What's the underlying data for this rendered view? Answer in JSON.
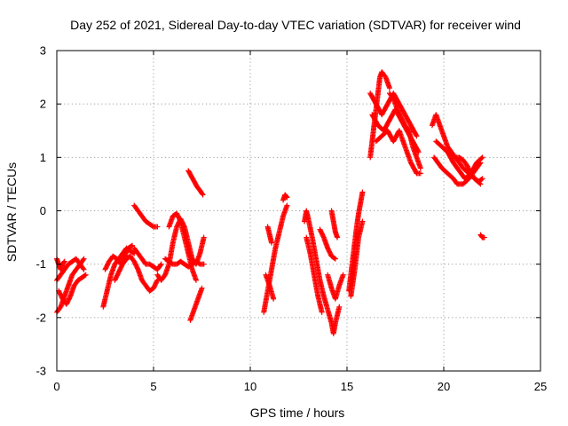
{
  "chart_data": {
    "type": "scatter",
    "title": "Day 252 of 2021, Sidereal Day-to-day VTEC variation (SDTVAR) for receiver wind",
    "xlabel": "GPS time / hours",
    "ylabel": "SDTVAR / TECUs",
    "xlim": [
      0,
      25
    ],
    "ylim": [
      -3,
      3
    ],
    "xticks": [
      "0",
      "5",
      "10",
      "15",
      "20",
      "25"
    ],
    "yticks": [
      "-3",
      "-2",
      "-1",
      "0",
      "1",
      "2",
      "3"
    ],
    "grid": true,
    "marker": "+",
    "marker_color": "#ff0000",
    "series": [
      {
        "name": "SDTVAR",
        "segments": [
          [
            [
              0.0,
              -1.9
            ],
            [
              0.2,
              -1.8
            ],
            [
              0.4,
              -1.6
            ],
            [
              0.6,
              -1.4
            ],
            [
              0.8,
              -1.2
            ],
            [
              1.0,
              -1.1
            ],
            [
              1.2,
              -1.0
            ],
            [
              1.4,
              -0.9
            ]
          ],
          [
            [
              0.0,
              -1.3
            ],
            [
              0.2,
              -1.2
            ],
            [
              0.4,
              -1.1
            ],
            [
              0.6,
              -1.0
            ],
            [
              0.8,
              -0.95
            ],
            [
              1.0,
              -0.9
            ],
            [
              1.2,
              -1.0
            ],
            [
              1.4,
              -1.1
            ]
          ],
          [
            [
              0.1,
              -1.5
            ],
            [
              0.3,
              -1.65
            ],
            [
              0.5,
              -1.75
            ],
            [
              0.7,
              -1.6
            ],
            [
              0.9,
              -1.4
            ],
            [
              1.1,
              -1.3
            ],
            [
              1.3,
              -1.25
            ],
            [
              1.5,
              -1.2
            ]
          ],
          [
            [
              0.0,
              -0.9
            ],
            [
              0.1,
              -1.0
            ],
            [
              0.2,
              -1.1
            ],
            [
              0.3,
              -1.0
            ],
            [
              0.4,
              -0.95
            ]
          ],
          [
            [
              2.4,
              -1.8
            ],
            [
              2.6,
              -1.5
            ],
            [
              2.8,
              -1.2
            ],
            [
              3.0,
              -1.0
            ],
            [
              3.2,
              -0.9
            ],
            [
              3.4,
              -0.8
            ],
            [
              3.6,
              -0.7
            ],
            [
              3.8,
              -0.75
            ],
            [
              4.0,
              -0.8
            ]
          ],
          [
            [
              2.5,
              -1.1
            ],
            [
              2.7,
              -0.95
            ],
            [
              2.9,
              -0.85
            ],
            [
              3.1,
              -0.9
            ],
            [
              3.3,
              -1.0
            ],
            [
              3.5,
              -0.85
            ],
            [
              3.7,
              -0.7
            ],
            [
              3.9,
              -0.65
            ]
          ],
          [
            [
              3.0,
              -1.3
            ],
            [
              3.2,
              -1.15
            ],
            [
              3.4,
              -1.0
            ],
            [
              3.6,
              -0.9
            ],
            [
              3.8,
              -0.85
            ],
            [
              4.0,
              -0.95
            ],
            [
              4.2,
              -1.1
            ],
            [
              4.4,
              -1.3
            ],
            [
              4.6,
              -1.4
            ],
            [
              4.8,
              -1.5
            ],
            [
              5.0,
              -1.45
            ],
            [
              5.2,
              -1.3
            ]
          ],
          [
            [
              4.0,
              -0.7
            ],
            [
              4.2,
              -0.8
            ],
            [
              4.4,
              -0.9
            ],
            [
              4.6,
              -1.0
            ],
            [
              4.8,
              -1.0
            ],
            [
              5.0,
              -1.05
            ],
            [
              5.2,
              -1.1
            ],
            [
              5.4,
              -1.0
            ]
          ],
          [
            [
              4.0,
              0.1
            ],
            [
              4.2,
              0.0
            ],
            [
              4.4,
              -0.1
            ],
            [
              4.6,
              -0.2
            ],
            [
              4.8,
              -0.25
            ],
            [
              5.0,
              -0.3
            ],
            [
              5.2,
              -0.3
            ]
          ],
          [
            [
              5.2,
              -1.2
            ],
            [
              5.4,
              -1.3
            ],
            [
              5.6,
              -1.2
            ],
            [
              5.8,
              -1.0
            ],
            [
              6.0,
              -0.6
            ],
            [
              6.2,
              -0.3
            ],
            [
              6.4,
              -0.15
            ],
            [
              6.6,
              -0.3
            ],
            [
              6.8,
              -0.6
            ],
            [
              7.0,
              -0.9
            ],
            [
              7.2,
              -1.0
            ],
            [
              7.4,
              -0.8
            ],
            [
              7.6,
              -0.5
            ]
          ],
          [
            [
              5.8,
              -0.3
            ],
            [
              6.0,
              -0.1
            ],
            [
              6.2,
              -0.05
            ],
            [
              6.4,
              -0.2
            ],
            [
              6.6,
              -0.5
            ],
            [
              6.8,
              -0.8
            ],
            [
              7.0,
              -1.1
            ],
            [
              7.2,
              -1.3
            ]
          ],
          [
            [
              5.6,
              -0.9
            ],
            [
              5.8,
              -0.95
            ],
            [
              6.0,
              -1.0
            ],
            [
              6.2,
              -1.0
            ],
            [
              6.4,
              -0.95
            ],
            [
              6.6,
              -1.0
            ],
            [
              6.8,
              -1.05
            ],
            [
              7.0,
              -1.0
            ],
            [
              7.2,
              -0.95
            ],
            [
              7.4,
              -1.0
            ],
            [
              7.6,
              -1.0
            ]
          ],
          [
            [
              6.9,
              -2.05
            ],
            [
              7.1,
              -1.85
            ],
            [
              7.3,
              -1.65
            ],
            [
              7.5,
              -1.45
            ]
          ],
          [
            [
              6.8,
              0.75
            ],
            [
              6.95,
              0.65
            ],
            [
              7.1,
              0.55
            ],
            [
              7.25,
              0.45
            ],
            [
              7.4,
              0.38
            ],
            [
              7.55,
              0.3
            ]
          ],
          [
            [
              10.7,
              -1.9
            ],
            [
              10.9,
              -1.5
            ],
            [
              11.1,
              -1.1
            ],
            [
              11.3,
              -0.7
            ],
            [
              11.5,
              -0.4
            ],
            [
              11.7,
              -0.1
            ],
            [
              11.9,
              0.1
            ]
          ],
          [
            [
              10.8,
              -1.2
            ],
            [
              11.0,
              -1.4
            ],
            [
              11.2,
              -1.65
            ]
          ],
          [
            [
              10.9,
              -0.3
            ],
            [
              11.0,
              -0.45
            ],
            [
              11.1,
              -0.6
            ]
          ],
          [
            [
              11.7,
              0.2
            ],
            [
              11.8,
              0.3
            ],
            [
              11.9,
              0.25
            ]
          ],
          [
            [
              12.8,
              -0.2
            ],
            [
              12.9,
              0.0
            ],
            [
              13.0,
              -0.15
            ],
            [
              13.2,
              -0.5
            ],
            [
              13.4,
              -0.9
            ],
            [
              13.6,
              -1.3
            ],
            [
              13.8,
              -1.6
            ],
            [
              14.0,
              -1.85
            ],
            [
              14.2,
              -2.1
            ],
            [
              14.3,
              -2.3
            ],
            [
              14.4,
              -2.1
            ],
            [
              14.6,
              -1.8
            ]
          ],
          [
            [
              12.9,
              -0.5
            ],
            [
              13.1,
              -0.8
            ],
            [
              13.3,
              -1.2
            ],
            [
              13.5,
              -1.6
            ],
            [
              13.7,
              -1.9
            ]
          ],
          [
            [
              13.6,
              -0.35
            ],
            [
              13.8,
              -0.5
            ],
            [
              14.0,
              -0.7
            ],
            [
              14.2,
              -0.85
            ],
            [
              14.4,
              -0.9
            ]
          ],
          [
            [
              14.0,
              -1.2
            ],
            [
              14.2,
              -1.45
            ],
            [
              14.4,
              -1.65
            ],
            [
              14.6,
              -1.4
            ],
            [
              14.8,
              -1.2
            ]
          ],
          [
            [
              14.2,
              0.0
            ],
            [
              14.3,
              -0.2
            ],
            [
              14.4,
              -0.4
            ],
            [
              14.5,
              -0.5
            ]
          ],
          [
            [
              15.1,
              -1.5
            ],
            [
              15.2,
              -1.2
            ],
            [
              15.3,
              -0.9
            ],
            [
              15.4,
              -0.6
            ],
            [
              15.5,
              -0.3
            ],
            [
              15.6,
              -0.05
            ],
            [
              15.7,
              0.15
            ],
            [
              15.8,
              0.35
            ]
          ],
          [
            [
              15.2,
              -1.6
            ],
            [
              15.3,
              -1.35
            ],
            [
              15.4,
              -1.1
            ],
            [
              15.6,
              -0.5
            ],
            [
              15.8,
              -0.2
            ]
          ],
          [
            [
              16.2,
              1.0
            ],
            [
              16.3,
              1.3
            ],
            [
              16.4,
              1.6
            ],
            [
              16.5,
              1.9
            ],
            [
              16.6,
              2.2
            ],
            [
              16.7,
              2.5
            ],
            [
              16.8,
              2.6
            ],
            [
              17.0,
              2.5
            ],
            [
              17.2,
              2.3
            ]
          ],
          [
            [
              16.3,
              1.8
            ],
            [
              16.6,
              1.6
            ],
            [
              16.9,
              1.5
            ],
            [
              17.2,
              1.7
            ],
            [
              17.5,
              1.9
            ],
            [
              17.8,
              1.7
            ],
            [
              18.1,
              1.5
            ],
            [
              18.4,
              1.3
            ],
            [
              18.7,
              1.1
            ]
          ],
          [
            [
              16.2,
              2.2
            ],
            [
              16.5,
              2.0
            ],
            [
              16.8,
              1.8
            ],
            [
              17.1,
              2.0
            ],
            [
              17.4,
              2.2
            ],
            [
              17.7,
              2.0
            ],
            [
              18.0,
              1.8
            ],
            [
              18.3,
              1.6
            ],
            [
              18.6,
              1.4
            ]
          ],
          [
            [
              16.5,
              1.3
            ],
            [
              16.8,
              1.4
            ],
            [
              17.1,
              1.5
            ],
            [
              17.4,
              1.3
            ],
            [
              17.7,
              1.5
            ],
            [
              18.0,
              1.2
            ],
            [
              18.3,
              0.9
            ],
            [
              18.6,
              0.7
            ],
            [
              18.8,
              0.7
            ]
          ],
          [
            [
              17.2,
              2.2
            ],
            [
              17.4,
              2.1
            ],
            [
              17.6,
              1.9
            ],
            [
              17.8,
              1.75
            ],
            [
              18.0,
              1.6
            ],
            [
              18.2,
              1.5
            ],
            [
              18.4,
              1.2
            ],
            [
              18.6,
              1.0
            ],
            [
              18.8,
              0.8
            ]
          ],
          [
            [
              19.4,
              1.6
            ],
            [
              19.6,
              1.8
            ],
            [
              19.8,
              1.6
            ],
            [
              20.0,
              1.4
            ],
            [
              20.2,
              1.2
            ],
            [
              20.4,
              1.1
            ],
            [
              20.6,
              1.0
            ],
            [
              20.8,
              0.9
            ],
            [
              21.0,
              0.8
            ],
            [
              21.3,
              0.7
            ],
            [
              21.6,
              0.6
            ],
            [
              21.9,
              0.5
            ]
          ],
          [
            [
              19.5,
              1.0
            ],
            [
              19.7,
              0.9
            ],
            [
              19.9,
              0.8
            ],
            [
              20.2,
              0.7
            ],
            [
              20.5,
              0.6
            ],
            [
              20.7,
              0.5
            ],
            [
              21.0,
              0.5
            ],
            [
              21.3,
              0.6
            ],
            [
              21.6,
              0.75
            ],
            [
              21.9,
              0.9
            ]
          ],
          [
            [
              19.6,
              1.3
            ],
            [
              19.9,
              1.2
            ],
            [
              20.2,
              1.1
            ],
            [
              20.5,
              0.9
            ],
            [
              20.8,
              0.75
            ],
            [
              21.1,
              0.6
            ],
            [
              21.4,
              0.7
            ],
            [
              21.7,
              0.9
            ],
            [
              22.0,
              1.0
            ]
          ],
          [
            [
              20.6,
              1.0
            ],
            [
              20.8,
              1.0
            ],
            [
              21.0,
              0.95
            ],
            [
              21.2,
              0.85
            ],
            [
              21.4,
              0.7
            ],
            [
              21.6,
              0.6
            ],
            [
              21.8,
              0.55
            ],
            [
              22.0,
              0.6
            ]
          ],
          [
            [
              21.9,
              -0.45
            ],
            [
              22.0,
              -0.5
            ],
            [
              22.1,
              -0.5
            ]
          ]
        ]
      }
    ]
  }
}
